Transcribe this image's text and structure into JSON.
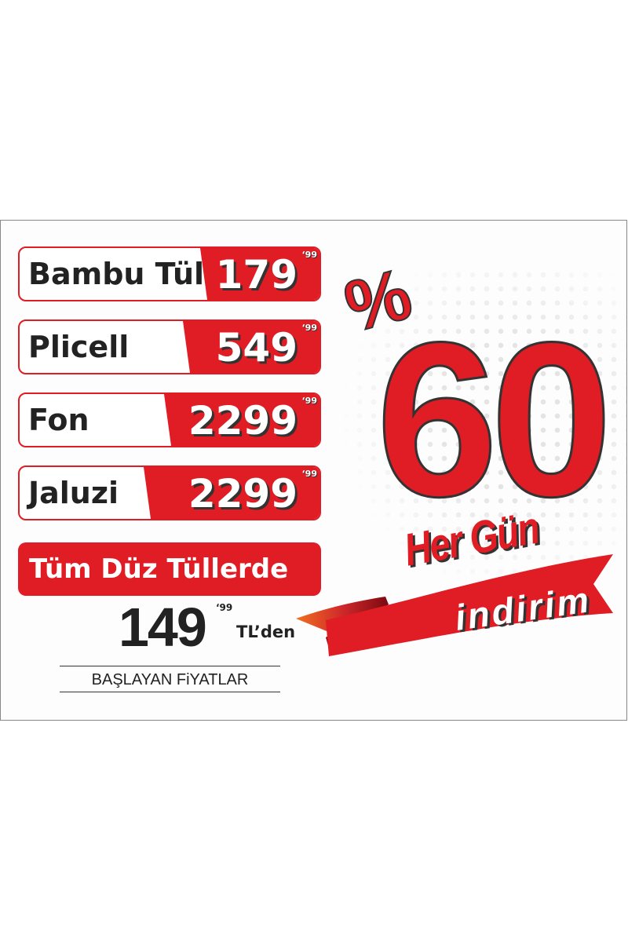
{
  "items": [
    {
      "name": "Bambu Tül",
      "price": "179",
      "cents": "‘99"
    },
    {
      "name": "Plicell",
      "price": "549",
      "cents": "‘99"
    },
    {
      "name": "Fon",
      "price": "2299",
      "cents": "‘99"
    },
    {
      "name": "Jaluzi",
      "price": "2299",
      "cents": "‘99"
    }
  ],
  "promo": {
    "label": "Tüm Düz Tüllerde",
    "price": "149",
    "cents": "‘99",
    "unit": "TL’den",
    "subtitle": "BAŞLAYAN FiYATLAR"
  },
  "discount": {
    "percent_sign": "%",
    "value": "60",
    "line1": "Her Gün",
    "line2": "indirim"
  },
  "colors": {
    "brand_red": "#e01c24",
    "text_dark": "#222222"
  }
}
